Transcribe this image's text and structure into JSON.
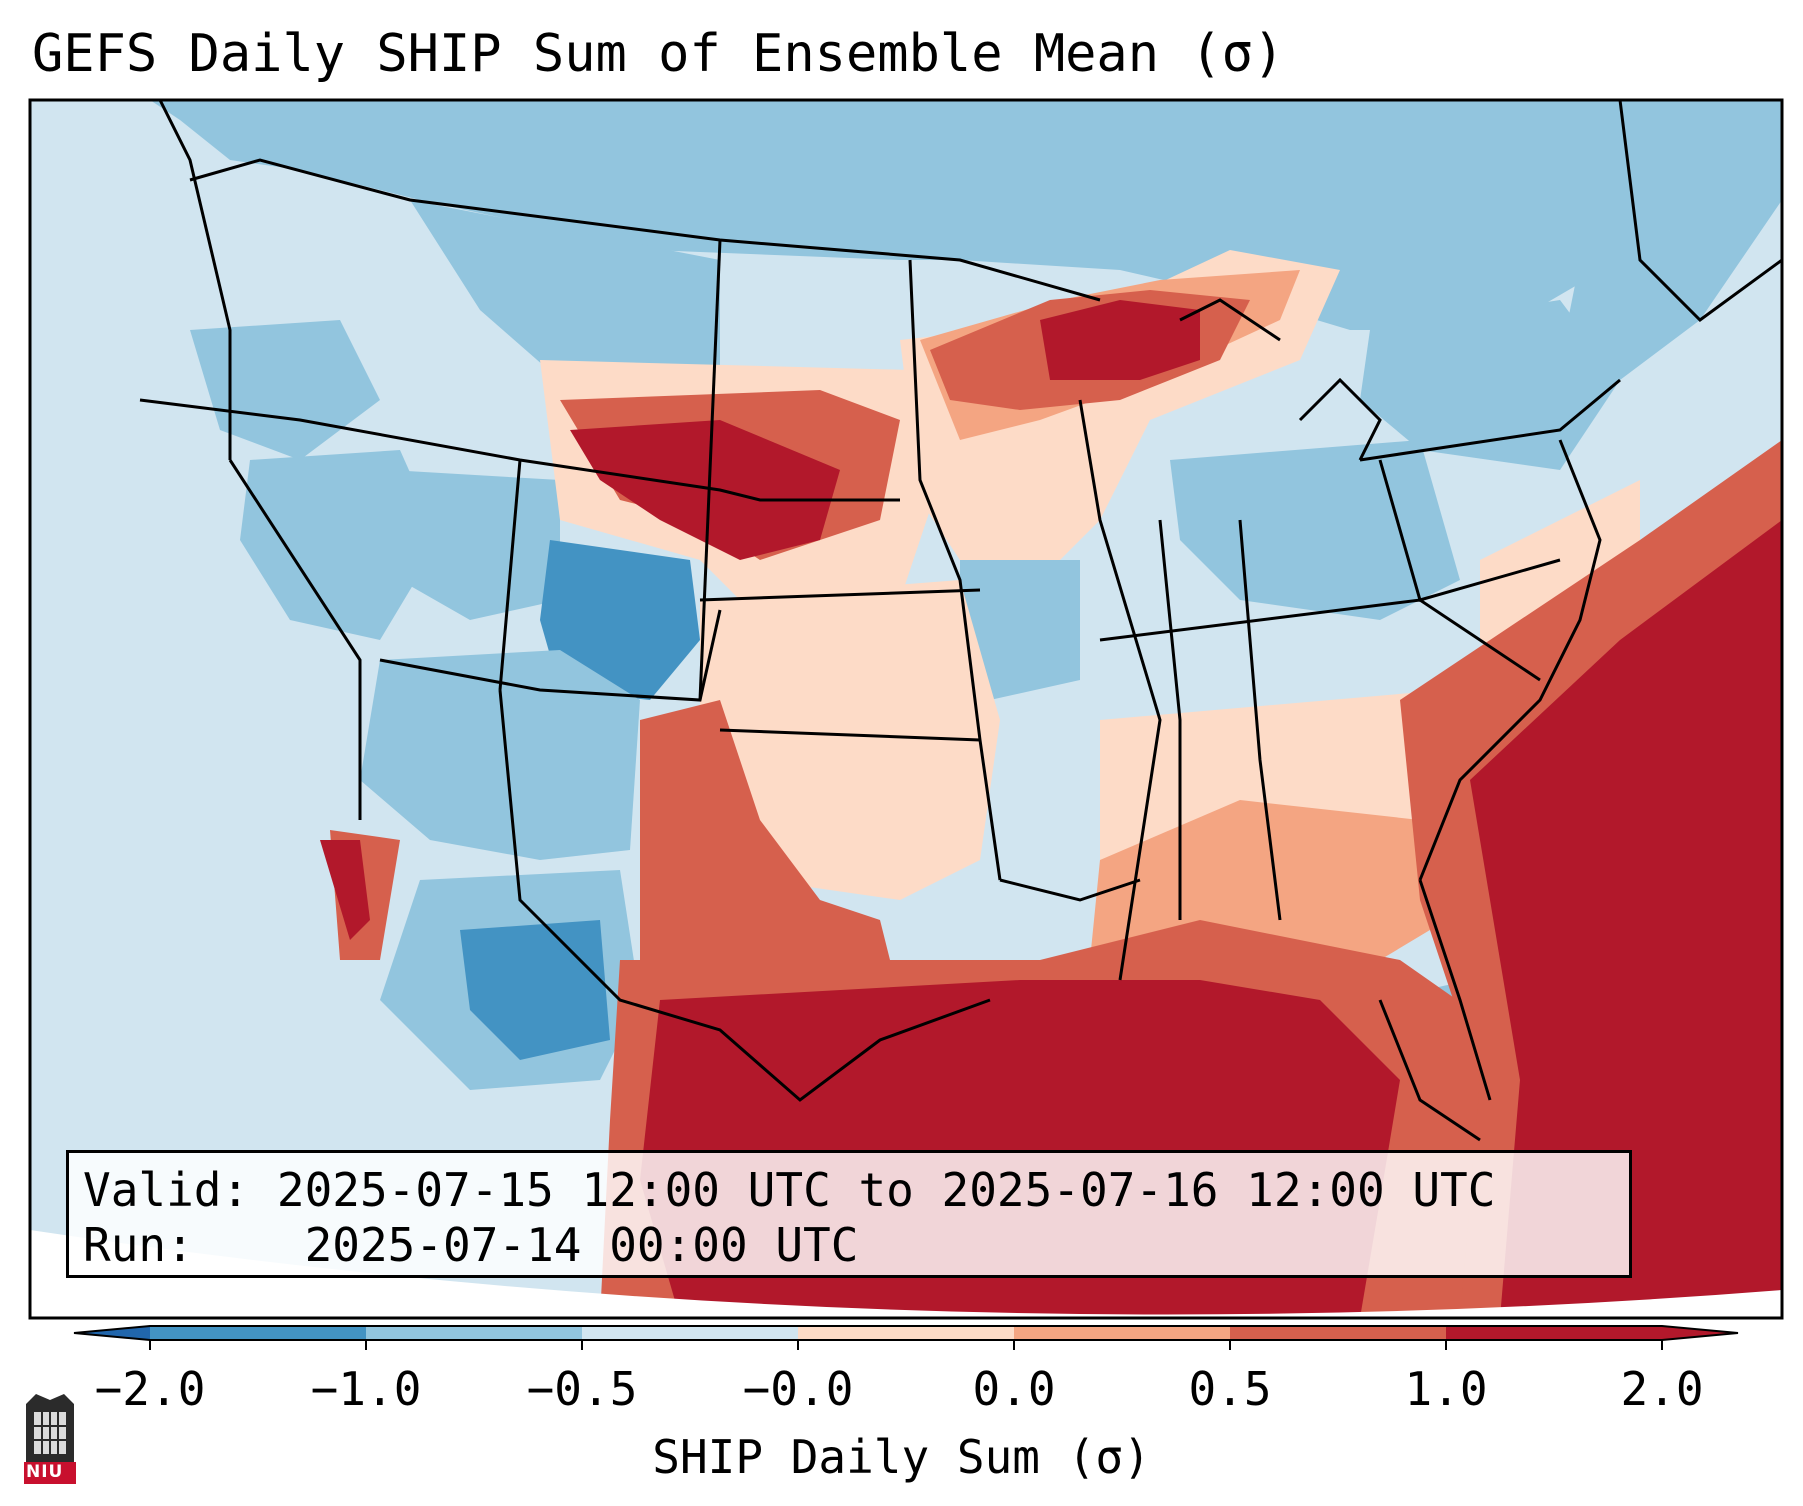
{
  "title": "GEFS Daily SHIP Sum of Ensemble Mean (σ)",
  "info": {
    "valid_label": "Valid:",
    "valid_value": "2025-07-15 12:00 UTC to 2025-07-16 12:00 UTC",
    "run_label": "Run:",
    "run_value": "2025-07-14 00:00 UTC"
  },
  "colorbar": {
    "label": "SHIP Daily Sum (σ)",
    "ticks": [
      "−2.0",
      "−1.0",
      "−0.5",
      "−0.0",
      "0.0",
      "0.5",
      "1.0",
      "2.0"
    ],
    "colors": [
      "#4393c3",
      "#92c5de",
      "#d1e5f0",
      "#fddbc7",
      "#f4a582",
      "#d6604d",
      "#b2182b"
    ],
    "under_color": "#2166ac",
    "over_color": "#b2182b"
  },
  "logo": {
    "text": "NIU"
  }
}
